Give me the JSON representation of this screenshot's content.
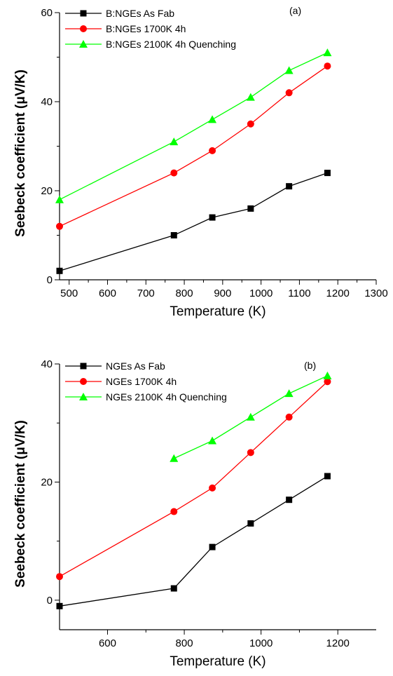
{
  "chart_data": [
    {
      "type": "line",
      "panel_label": "(a)",
      "xlabel": "Temperature (K)",
      "ylabel": "Seebeck coefficient (μV/K)",
      "xlim": [
        475,
        1300
      ],
      "ylim": [
        0,
        60
      ],
      "xticks": [
        500,
        600,
        700,
        800,
        900,
        1000,
        1100,
        1200,
        1300
      ],
      "yticks": [
        0,
        20,
        40,
        60
      ],
      "legend_position": "top-left",
      "series": [
        {
          "name": "B:NGEs As Fab",
          "color": "#000000",
          "marker": "square",
          "x": [
            475,
            773,
            873,
            973,
            1073,
            1173
          ],
          "y": [
            2,
            10,
            14,
            16,
            21,
            24
          ]
        },
        {
          "name": "B:NGEs 1700K 4h",
          "color": "#ff0000",
          "marker": "circle",
          "x": [
            475,
            773,
            873,
            973,
            1073,
            1173
          ],
          "y": [
            12,
            24,
            29,
            35,
            42,
            48
          ]
        },
        {
          "name": "B:NGEs 2100K 4h Quenching",
          "color": "#00ff00",
          "marker": "triangle",
          "x": [
            475,
            773,
            873,
            973,
            1073,
            1173
          ],
          "y": [
            18,
            31,
            36,
            41,
            47,
            51
          ]
        }
      ]
    },
    {
      "type": "line",
      "panel_label": "(b)",
      "xlabel": "Temperature (K)",
      "ylabel": "Seebeck coefficient (μV/K)",
      "xlim": [
        475,
        1300
      ],
      "ylim": [
        -5,
        40
      ],
      "xticks": [
        600,
        800,
        1000,
        1200
      ],
      "yticks": [
        0,
        20,
        40
      ],
      "legend_position": "top-left",
      "series": [
        {
          "name": "NGEs As Fab",
          "color": "#000000",
          "marker": "square",
          "x": [
            475,
            773,
            873,
            973,
            1073,
            1173
          ],
          "y": [
            -1,
            2,
            9,
            13,
            17,
            21
          ]
        },
        {
          "name": "NGEs 1700K 4h",
          "color": "#ff0000",
          "marker": "circle",
          "x": [
            475,
            773,
            873,
            973,
            1073,
            1173
          ],
          "y": [
            4,
            15,
            19,
            25,
            31,
            37
          ]
        },
        {
          "name": "NGEs 2100K 4h Quenching",
          "color": "#00ff00",
          "marker": "triangle",
          "x": [
            773,
            873,
            973,
            1073,
            1173
          ],
          "y": [
            24,
            27,
            31,
            35,
            38
          ]
        }
      ]
    }
  ]
}
